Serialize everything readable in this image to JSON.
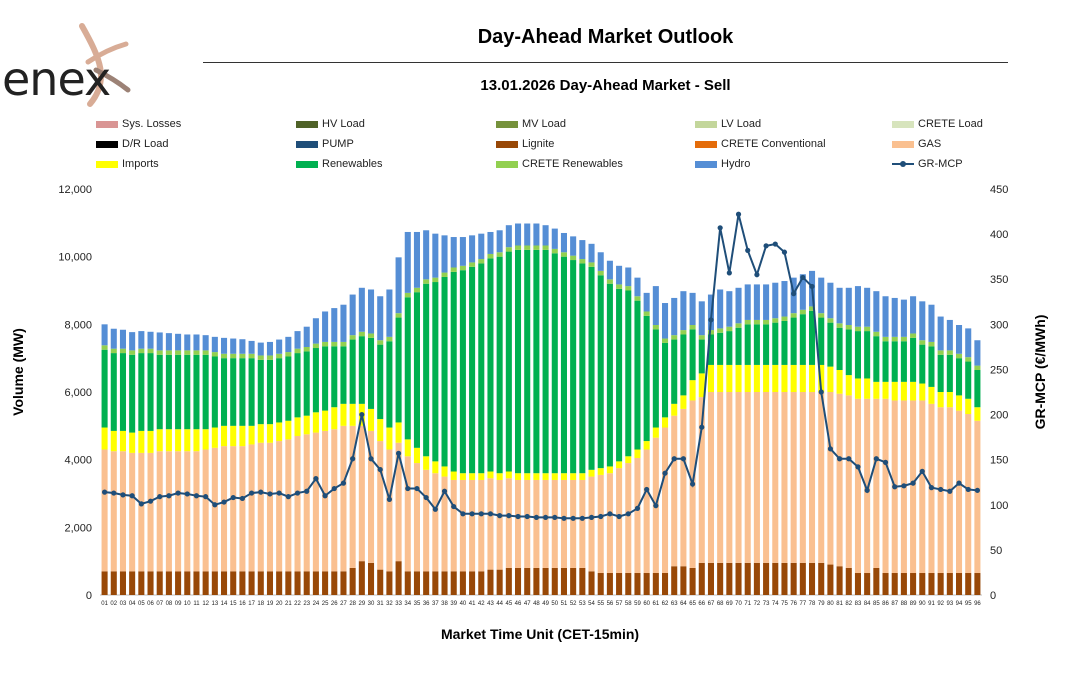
{
  "header": {
    "brand": "enex",
    "title": "Day-Ahead Market Outlook",
    "subtitle": "13.01.2026  Day-Ahead Market - Sell"
  },
  "colors": {
    "Sys. Losses": "#d99594",
    "HV Load": "#4f6228",
    "MV Load": "#76923c",
    "LV Load": "#c3d69b",
    "CRETE Load": "#d7e4bd",
    "D/R Load": "#000000",
    "PUMP": "#1f4e79",
    "Lignite": "#984807",
    "CRETE Conventional": "#e46c0a",
    "GAS": "#fac090",
    "Imports": "#ffff00",
    "Renewables": "#00b050",
    "CRETE Renewables": "#92d050",
    "Hydro": "#558ed5",
    "GR-MCP": "#1f4e79"
  },
  "chart_data": {
    "type": "bar",
    "xlabel": "Market Time Unit (CET-15min)",
    "ylabel": "Volume (MW)",
    "y2label": "GR-MCP (€/MWh)",
    "ylim": [
      0,
      12000
    ],
    "y2lim": [
      0,
      450
    ],
    "yticks": [
      "0",
      "2,000",
      "4,000",
      "6,000",
      "8,000",
      "10,000",
      "12,000"
    ],
    "y2ticks": [
      "0",
      "50",
      "100",
      "150",
      "200",
      "250",
      "300",
      "350",
      "400",
      "450"
    ],
    "legend_position": "top",
    "legend": [
      "Sys. Losses",
      "HV Load",
      "MV Load",
      "LV Load",
      "CRETE Load",
      "D/R Load",
      "PUMP",
      "Lignite",
      "CRETE Conventional",
      "GAS",
      "Imports",
      "Renewables",
      "CRETE Renewables",
      "Hydro",
      "GR-MCP"
    ],
    "categories": [
      "01",
      "02",
      "03",
      "04",
      "05",
      "06",
      "07",
      "08",
      "09",
      "10",
      "11",
      "12",
      "13",
      "14",
      "15",
      "16",
      "17",
      "18",
      "19",
      "20",
      "21",
      "22",
      "23",
      "24",
      "25",
      "26",
      "27",
      "28",
      "29",
      "30",
      "31",
      "32",
      "33",
      "34",
      "35",
      "36",
      "37",
      "38",
      "39",
      "40",
      "41",
      "42",
      "43",
      "44",
      "45",
      "46",
      "47",
      "48",
      "49",
      "50",
      "51",
      "52",
      "53",
      "54",
      "55",
      "56",
      "57",
      "58",
      "59",
      "60",
      "61",
      "62",
      "63",
      "64",
      "65",
      "66",
      "67",
      "68",
      "69",
      "70",
      "71",
      "72",
      "73",
      "74",
      "75",
      "76",
      "77",
      "78",
      "79",
      "80",
      "81",
      "82",
      "83",
      "84",
      "85",
      "86",
      "87",
      "88",
      "89",
      "90",
      "91",
      "92",
      "93",
      "94",
      "95",
      "96"
    ],
    "series": [
      {
        "name": "Lignite",
        "values": [
          700,
          700,
          700,
          700,
          700,
          700,
          700,
          700,
          700,
          700,
          700,
          700,
          700,
          700,
          700,
          700,
          700,
          700,
          700,
          700,
          700,
          700,
          700,
          700,
          700,
          700,
          700,
          800,
          1000,
          950,
          750,
          700,
          1000,
          700,
          700,
          700,
          700,
          700,
          700,
          700,
          700,
          700,
          750,
          750,
          800,
          800,
          800,
          800,
          800,
          800,
          800,
          800,
          800,
          700,
          650,
          650,
          650,
          650,
          650,
          650,
          650,
          650,
          850,
          850,
          800,
          950,
          950,
          950,
          950,
          950,
          950,
          950,
          950,
          950,
          950,
          950,
          950,
          950,
          950,
          900,
          850,
          800,
          650,
          650,
          800,
          650,
          650,
          650,
          650,
          650,
          650,
          650,
          650,
          650,
          650,
          650
        ]
      },
      {
        "name": "GAS",
        "values": [
          3600,
          3550,
          3550,
          3500,
          3500,
          3500,
          3550,
          3550,
          3550,
          3550,
          3550,
          3600,
          3650,
          3700,
          3700,
          3700,
          3750,
          3800,
          3800,
          3850,
          3900,
          4000,
          4050,
          4100,
          4150,
          4200,
          4300,
          4200,
          4000,
          3900,
          3800,
          3600,
          3500,
          3400,
          3200,
          3000,
          2900,
          2800,
          2700,
          2700,
          2700,
          2700,
          2700,
          2650,
          2650,
          2600,
          2600,
          2600,
          2600,
          2600,
          2600,
          2600,
          2600,
          2800,
          2900,
          2950,
          3100,
          3250,
          3400,
          3650,
          4000,
          4300,
          4450,
          4650,
          4950,
          4900,
          5050,
          5050,
          5050,
          5050,
          5050,
          5050,
          5050,
          5050,
          5050,
          5050,
          5050,
          5050,
          5050,
          5100,
          5100,
          5100,
          5150,
          5150,
          5000,
          5150,
          5100,
          5100,
          5100,
          5100,
          5000,
          4900,
          4900,
          4800,
          4700,
          4500
        ]
      },
      {
        "name": "Imports",
        "values": [
          650,
          600,
          600,
          600,
          650,
          650,
          650,
          650,
          650,
          650,
          650,
          600,
          600,
          600,
          600,
          600,
          550,
          550,
          550,
          550,
          550,
          550,
          550,
          600,
          600,
          650,
          650,
          650,
          650,
          650,
          650,
          650,
          600,
          500,
          450,
          400,
          350,
          300,
          250,
          200,
          200,
          200,
          200,
          200,
          200,
          200,
          200,
          200,
          200,
          200,
          200,
          200,
          200,
          200,
          200,
          200,
          200,
          200,
          250,
          250,
          300,
          300,
          350,
          400,
          600,
          700,
          800,
          800,
          800,
          800,
          800,
          800,
          800,
          800,
          800,
          800,
          800,
          800,
          800,
          750,
          700,
          600,
          600,
          600,
          500,
          500,
          550,
          550,
          550,
          500,
          500,
          450,
          450,
          450,
          450,
          400
        ]
      },
      {
        "name": "Renewables",
        "values": [
          2300,
          2300,
          2300,
          2300,
          2300,
          2300,
          2200,
          2200,
          2200,
          2200,
          2200,
          2200,
          2100,
          2000,
          2000,
          2000,
          2000,
          1900,
          1900,
          1900,
          1900,
          1900,
          1900,
          1900,
          1900,
          1800,
          1700,
          1900,
          2000,
          2100,
          2200,
          2550,
          3100,
          4200,
          4600,
          5100,
          5300,
          5600,
          5900,
          6000,
          6100,
          6200,
          6300,
          6400,
          6500,
          6600,
          6600,
          6600,
          6600,
          6500,
          6400,
          6300,
          6200,
          6000,
          5700,
          5400,
          5100,
          4900,
          4400,
          3700,
          2900,
          2200,
          1900,
          1800,
          1500,
          1000,
          900,
          950,
          1000,
          1100,
          1200,
          1200,
          1200,
          1250,
          1300,
          1400,
          1500,
          1600,
          1400,
          1300,
          1250,
          1350,
          1400,
          1400,
          1350,
          1200,
          1200,
          1200,
          1300,
          1150,
          1200,
          1100,
          1100,
          1100,
          1100,
          1100
        ]
      },
      {
        "name": "CRETE Renewables",
        "values": [
          130,
          130,
          130,
          130,
          130,
          130,
          130,
          130,
          130,
          130,
          130,
          130,
          130,
          130,
          130,
          130,
          130,
          130,
          130,
          130,
          130,
          130,
          130,
          130,
          130,
          130,
          130,
          130,
          130,
          130,
          130,
          130,
          130,
          130,
          130,
          130,
          130,
          130,
          130,
          130,
          130,
          130,
          130,
          130,
          130,
          130,
          130,
          130,
          130,
          130,
          130,
          130,
          130,
          130,
          130,
          130,
          130,
          130,
          130,
          130,
          130,
          130,
          130,
          130,
          130,
          130,
          130,
          130,
          130,
          130,
          130,
          130,
          130,
          130,
          130,
          130,
          130,
          130,
          130,
          130,
          130,
          130,
          130,
          130,
          130,
          130,
          130,
          130,
          130,
          130,
          130,
          130,
          130,
          130,
          130,
          130
        ]
      },
      {
        "name": "Hydro",
        "values": [
          620,
          590,
          560,
          540,
          520,
          500,
          530,
          510,
          490,
          470,
          470,
          450,
          450,
          470,
          450,
          430,
          380,
          380,
          400,
          420,
          450,
          520,
          600,
          750,
          900,
          1000,
          1100,
          1200,
          1300,
          1300,
          1300,
          1400,
          1650,
          1800,
          1650,
          1450,
          1300,
          1100,
          900,
          850,
          800,
          750,
          650,
          650,
          650,
          650,
          650,
          650,
          600,
          600,
          570,
          570,
          560,
          550,
          550,
          550,
          550,
          550,
          550,
          550,
          1150,
          1050,
          1100,
          1150,
          950,
          1000,
          1050,
          1150,
          1050,
          1050,
          1050,
          1050,
          1050,
          1050,
          1050,
          1050,
          1050,
          1050,
          1050,
          1050,
          1050,
          1100,
          1200,
          1150,
          1200,
          1200,
          1150,
          1100,
          1100,
          1150,
          1100,
          1000,
          900,
          850,
          850,
          750
        ]
      }
    ],
    "line_series": {
      "name": "GR-MCP",
      "axis": "y2",
      "values": [
        114,
        113,
        111,
        110,
        101,
        104,
        109,
        110,
        113,
        112,
        110,
        109,
        100,
        103,
        108,
        107,
        113,
        114,
        112,
        113,
        109,
        113,
        115,
        129,
        110,
        118,
        124,
        151,
        200,
        151,
        139,
        106,
        157,
        118,
        118,
        108,
        95,
        115,
        98,
        90,
        90,
        90,
        90,
        88,
        88,
        87,
        87,
        86,
        86,
        86,
        85,
        85,
        85,
        86,
        87,
        90,
        87,
        90,
        96,
        117,
        99,
        135,
        151,
        151,
        123,
        186,
        305,
        407,
        357,
        422,
        382,
        355,
        387,
        389,
        380,
        334,
        352,
        342,
        225,
        162,
        151,
        151,
        142,
        116,
        151,
        147,
        120,
        121,
        124,
        137,
        119,
        117,
        115,
        124,
        117,
        116
      ]
    }
  }
}
